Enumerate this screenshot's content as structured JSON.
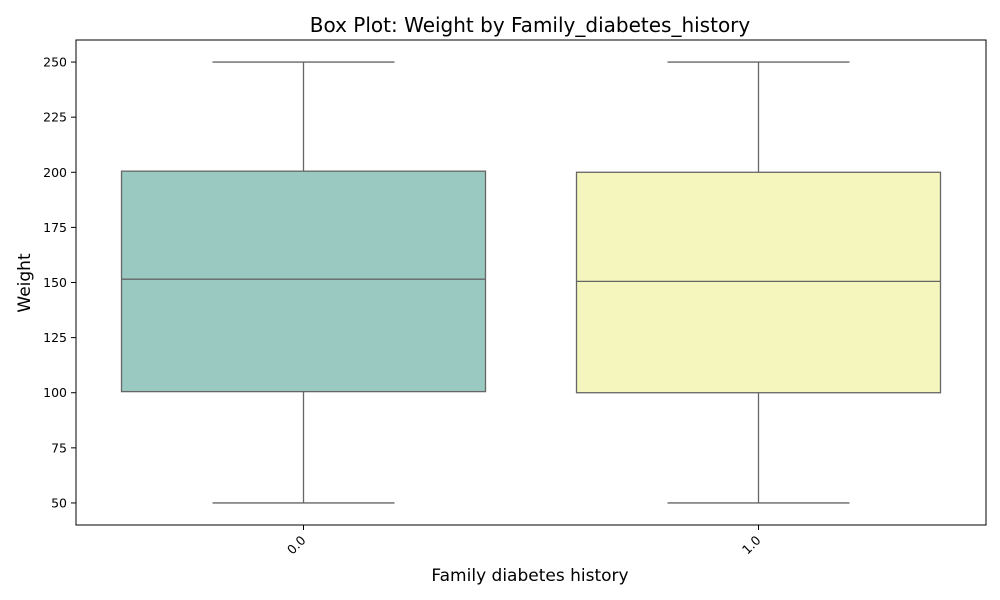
{
  "chart_data": {
    "type": "box",
    "title": "Box Plot: Weight by Family_diabetes_history",
    "xlabel": "Family diabetes history",
    "ylabel": "Weight",
    "ylim": [
      40,
      260
    ],
    "yticks": [
      50,
      75,
      100,
      125,
      150,
      175,
      200,
      225,
      250
    ],
    "categories": [
      "0.0",
      "1.0"
    ],
    "boxes": [
      {
        "category": "0.0",
        "min": 50,
        "q1": 100.5,
        "median": 151.5,
        "q3": 200.5,
        "max": 250,
        "color": "#99c9c1"
      },
      {
        "category": "1.0",
        "min": 50,
        "q1": 100,
        "median": 150.5,
        "q3": 200,
        "max": 250,
        "color": "#f5f6bd"
      }
    ],
    "line_color": "#666666",
    "grid": false,
    "xtick_rotation": 45
  }
}
